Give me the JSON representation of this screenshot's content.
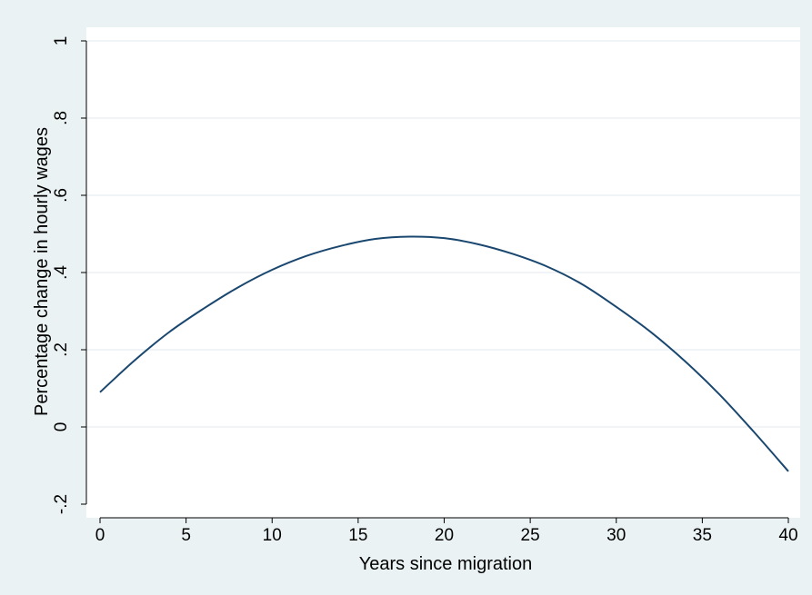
{
  "chart_data": {
    "type": "line",
    "title": "",
    "xlabel": "Years since migration",
    "ylabel": "Percentage change in hourly wages",
    "xlim": [
      0,
      40
    ],
    "ylim": [
      -0.2,
      1
    ],
    "x_ticks": [
      0,
      5,
      10,
      15,
      20,
      25,
      30,
      35,
      40
    ],
    "x_tick_labels": [
      "0",
      "5",
      "10",
      "15",
      "20",
      "25",
      "30",
      "35",
      "40"
    ],
    "y_ticks": [
      -0.2,
      0,
      0.2,
      0.4,
      0.6,
      0.8,
      1
    ],
    "y_tick_labels": [
      "-.2",
      "0",
      ".2",
      ".4",
      ".6",
      ".8",
      "1"
    ],
    "grid": true,
    "legend": "none",
    "colors": {
      "background": "#eaf2f3",
      "plot_background": "#ffffff",
      "grid": "#e6eef0",
      "line": "#1a476f"
    },
    "series": [
      {
        "x": [
          0,
          2,
          4,
          6,
          8,
          10,
          12,
          14,
          16,
          18,
          20,
          22,
          24,
          26,
          28,
          30,
          32,
          34,
          36,
          38,
          40
        ],
        "values": [
          0.09,
          0.172,
          0.245,
          0.306,
          0.361,
          0.407,
          0.443,
          0.469,
          0.487,
          0.493,
          0.489,
          0.473,
          0.448,
          0.415,
          0.37,
          0.311,
          0.246,
          0.17,
          0.084,
          -0.013,
          -0.115
        ]
      }
    ]
  }
}
